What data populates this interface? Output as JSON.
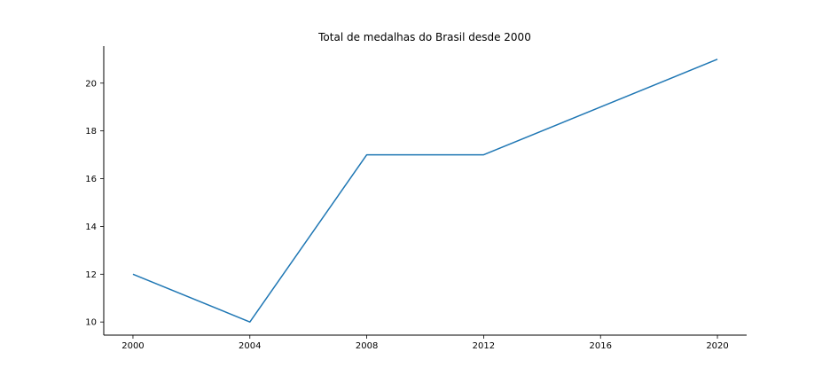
{
  "chart_data": {
    "type": "line",
    "title": "Total de medalhas do Brasil desde 2000",
    "xlabel": "",
    "ylabel": "",
    "x": [
      2000,
      2004,
      2008,
      2012,
      2016,
      2020
    ],
    "series": [
      {
        "values": [
          12,
          10,
          17,
          17,
          19,
          21
        ]
      }
    ],
    "xticks": [
      "2000",
      "2004",
      "2008",
      "2012",
      "2016",
      "2020"
    ],
    "yticks": [
      "10",
      "12",
      "14",
      "16",
      "18",
      "20"
    ],
    "xlim": [
      1999,
      2021
    ],
    "ylim": [
      9.45,
      21.55
    ],
    "grid": false,
    "legend": "none",
    "colors": {
      "line": "#1f77b4",
      "axis": "#000000"
    }
  }
}
